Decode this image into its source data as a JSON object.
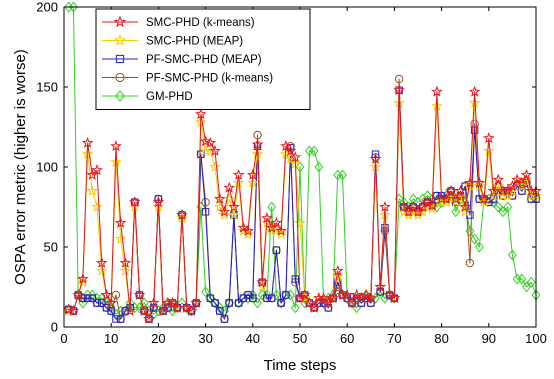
{
  "chart_data": {
    "type": "line",
    "title": "",
    "xlabel": "Time steps",
    "ylabel": "OSPA error metric (higher is worse)",
    "xlim": [
      0,
      100
    ],
    "ylim": [
      0,
      200
    ],
    "xticks": [
      0,
      10,
      20,
      30,
      40,
      50,
      60,
      70,
      80,
      90,
      100
    ],
    "yticks": [
      0,
      50,
      100,
      150,
      200
    ],
    "grid": false,
    "legend_position": "top-left",
    "x": [
      1,
      2,
      3,
      4,
      5,
      6,
      7,
      8,
      9,
      10,
      11,
      12,
      13,
      14,
      15,
      16,
      17,
      18,
      19,
      20,
      21,
      22,
      23,
      24,
      25,
      26,
      27,
      28,
      29,
      30,
      31,
      32,
      33,
      34,
      35,
      36,
      37,
      38,
      39,
      40,
      41,
      42,
      43,
      44,
      45,
      46,
      47,
      48,
      49,
      50,
      51,
      52,
      53,
      54,
      55,
      56,
      57,
      58,
      59,
      60,
      61,
      62,
      63,
      64,
      65,
      66,
      67,
      68,
      69,
      70,
      71,
      72,
      73,
      74,
      75,
      76,
      77,
      78,
      79,
      80,
      81,
      82,
      83,
      84,
      85,
      86,
      87,
      88,
      89,
      90,
      91,
      92,
      93,
      94,
      95,
      96,
      97,
      98,
      99,
      100
    ],
    "series": [
      {
        "name": "SMC-PHD (k-means)",
        "color": "#e8141e",
        "marker": "star",
        "values": [
          11,
          10,
          20,
          30,
          115,
          95,
          98,
          40,
          20,
          15,
          113,
          65,
          40,
          10,
          78,
          20,
          10,
          5,
          15,
          78,
          10,
          15,
          15,
          12,
          70,
          12,
          10,
          15,
          133,
          116,
          115,
          110,
          80,
          72,
          87,
          75,
          95,
          62,
          60,
          95,
          114,
          28,
          68,
          62,
          65,
          60,
          113,
          110,
          106,
          18,
          20,
          15,
          12,
          18,
          18,
          15,
          18,
          35,
          20,
          20,
          15,
          20,
          18,
          20,
          18,
          105,
          25,
          75,
          20,
          18,
          148,
          75,
          72,
          75,
          72,
          75,
          78,
          76,
          147,
          80,
          80,
          85,
          80,
          85,
          75,
          90,
          147,
          90,
          80,
          118,
          85,
          92,
          85,
          85,
          88,
          92,
          90,
          95,
          85,
          85
        ]
      },
      {
        "name": "SMC-PHD (MEAP)",
        "color": "#f0d000",
        "marker": "star",
        "values": [
          10,
          10,
          20,
          28,
          108,
          85,
          75,
          35,
          20,
          15,
          103,
          55,
          35,
          10,
          75,
          20,
          10,
          5,
          15,
          75,
          10,
          15,
          15,
          12,
          68,
          12,
          10,
          15,
          128,
          110,
          110,
          100,
          75,
          70,
          80,
          70,
          90,
          60,
          58,
          90,
          108,
          25,
          65,
          60,
          60,
          58,
          108,
          105,
          102,
          65,
          18,
          15,
          12,
          18,
          18,
          15,
          18,
          32,
          20,
          20,
          15,
          20,
          18,
          20,
          18,
          100,
          25,
          70,
          20,
          18,
          140,
          72,
          70,
          72,
          70,
          72,
          75,
          74,
          138,
          78,
          78,
          82,
          78,
          82,
          72,
          88,
          140,
          88,
          78,
          110,
          82,
          88,
          82,
          82,
          85,
          90,
          88,
          92,
          82,
          82
        ]
      },
      {
        "name": "PF-SMC-PHD (MEAP)",
        "color": "#2020c8",
        "marker": "square",
        "values": [
          11,
          10,
          20,
          18,
          18,
          18,
          15,
          15,
          12,
          10,
          5,
          5,
          10,
          12,
          78,
          20,
          10,
          5,
          12,
          80,
          10,
          12,
          15,
          12,
          70,
          12,
          10,
          15,
          108,
          72,
          18,
          15,
          10,
          5,
          15,
          70,
          15,
          18,
          20,
          18,
          113,
          28,
          18,
          18,
          48,
          15,
          20,
          112,
          30,
          18,
          20,
          15,
          12,
          15,
          15,
          12,
          18,
          28,
          20,
          18,
          15,
          18,
          15,
          18,
          15,
          108,
          22,
          62,
          20,
          18,
          148,
          75,
          72,
          75,
          72,
          75,
          78,
          76,
          82,
          82,
          80,
          85,
          78,
          82,
          88,
          70,
          123,
          80,
          80,
          78,
          80,
          85,
          82,
          85,
          82,
          88,
          85,
          90,
          80,
          80
        ]
      },
      {
        "name": "PF-SMC-PHD (k-means)",
        "color": "#a05018",
        "marker": "circle",
        "values": [
          11,
          10,
          20,
          18,
          18,
          18,
          15,
          15,
          12,
          10,
          20,
          5,
          10,
          12,
          78,
          20,
          10,
          5,
          12,
          80,
          10,
          12,
          15,
          12,
          70,
          12,
          10,
          15,
          108,
          78,
          18,
          15,
          10,
          5,
          15,
          70,
          15,
          18,
          20,
          18,
          120,
          28,
          18,
          18,
          48,
          15,
          20,
          113,
          28,
          18,
          20,
          15,
          12,
          15,
          15,
          12,
          18,
          25,
          20,
          18,
          15,
          18,
          15,
          18,
          15,
          106,
          22,
          60,
          20,
          18,
          155,
          75,
          72,
          75,
          72,
          75,
          78,
          76,
          82,
          82,
          80,
          85,
          78,
          82,
          88,
          40,
          127,
          80,
          80,
          78,
          80,
          85,
          82,
          85,
          82,
          88,
          85,
          90,
          80,
          80
        ]
      },
      {
        "name": "GM-PHD",
        "color": "#30d020",
        "marker": "diamond",
        "values": [
          200,
          200,
          20,
          15,
          20,
          20,
          18,
          18,
          15,
          12,
          8,
          10,
          10,
          15,
          12,
          12,
          15,
          10,
          8,
          10,
          12,
          15,
          10,
          12,
          15,
          12,
          10,
          15,
          75,
          22,
          18,
          15,
          12,
          10,
          15,
          70,
          15,
          18,
          18,
          20,
          15,
          20,
          20,
          75,
          20,
          15,
          20,
          20,
          12,
          100,
          15,
          110,
          110,
          100,
          15,
          18,
          20,
          95,
          95,
          18,
          15,
          12,
          18,
          20,
          18,
          18,
          22,
          18,
          20,
          18,
          80,
          78,
          75,
          80,
          78,
          80,
          82,
          80,
          75,
          78,
          82,
          85,
          72,
          80,
          78,
          60,
          55,
          50,
          80,
          80,
          78,
          75,
          72,
          75,
          45,
          30,
          30,
          25,
          28,
          20
        ]
      }
    ]
  }
}
